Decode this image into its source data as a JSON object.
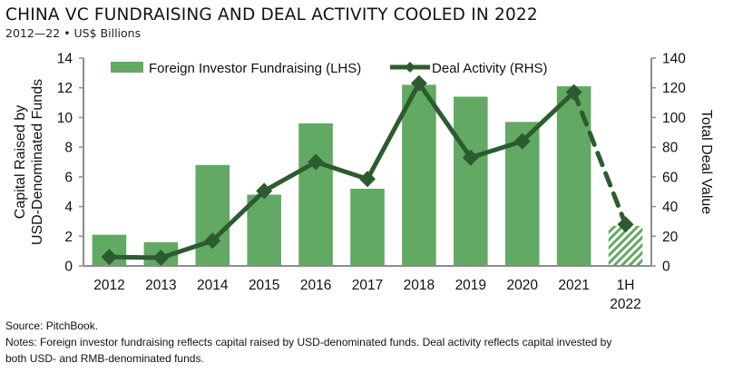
{
  "header": {
    "title": "CHINA VC FUNDRAISING AND DEAL ACTIVITY COOLED IN 2022",
    "subtitle": "2012—22 • US$ Billions"
  },
  "footer": {
    "source": "Source: PitchBook.",
    "notes_line1": "Notes: Foreign investor fundraising reflects capital raised by USD-denominated funds. Deal activity reflects capital invested by",
    "notes_line2": "both USD- and RMB-denominated funds."
  },
  "colors": {
    "bar": "#62a964",
    "line": "#2d5b30",
    "axis": "#8c8c8c"
  },
  "chart_data": {
    "type": "bar",
    "title": "CHINA VC FUNDRAISING AND DEAL ACTIVITY COOLED IN 2022",
    "subtitle": "2012—22 • US$ Billions",
    "categories": [
      "2012",
      "2013",
      "2014",
      "2015",
      "2016",
      "2017",
      "2018",
      "2019",
      "2020",
      "2021",
      "1H 2022"
    ],
    "category_labels": [
      [
        "2012"
      ],
      [
        "2013"
      ],
      [
        "2014"
      ],
      [
        "2015"
      ],
      [
        "2016"
      ],
      [
        "2017"
      ],
      [
        "2018"
      ],
      [
        "2019"
      ],
      [
        "2020"
      ],
      [
        "2021"
      ],
      [
        "1H",
        "2022"
      ]
    ],
    "series": [
      {
        "name": "Foreign Investor Fundraising (LHS)",
        "type": "bar",
        "axis": "left",
        "values": [
          2.1,
          1.6,
          6.8,
          4.8,
          9.6,
          5.2,
          12.2,
          11.4,
          9.7,
          12.1,
          2.7
        ],
        "partial_last": true
      },
      {
        "name": "Deal Activity (RHS)",
        "type": "line",
        "axis": "right",
        "marker": "diamond",
        "values": [
          6,
          5.5,
          17,
          50.5,
          70,
          58.5,
          123,
          73,
          84,
          117,
          28
        ],
        "dashed_last_segment": true
      }
    ],
    "ylabel": "Capital Raised by USD-Denominated Funds",
    "ylabel_lines": [
      "Capital Raised by",
      "USD-Denominated Funds"
    ],
    "ylim": [
      0,
      14
    ],
    "yticks": [
      0,
      2,
      4,
      6,
      8,
      10,
      12,
      14
    ],
    "y2label": "Total Deal Value",
    "y2lim": [
      0,
      140
    ],
    "y2ticks": [
      0,
      20,
      40,
      60,
      80,
      100,
      120,
      140
    ],
    "grid": false,
    "legend": "top"
  }
}
